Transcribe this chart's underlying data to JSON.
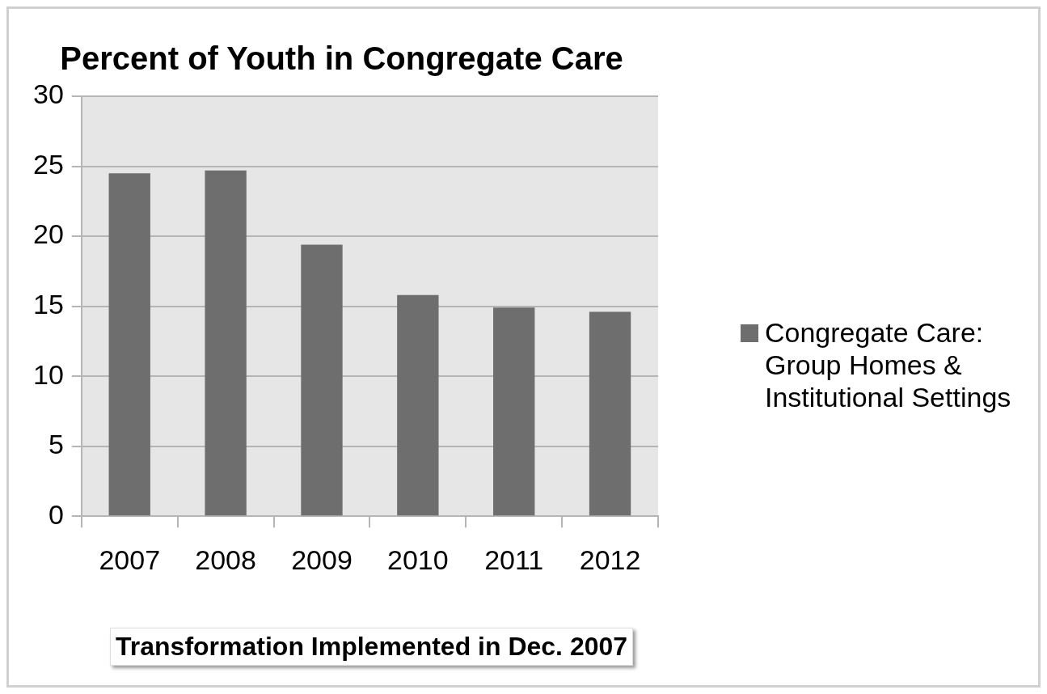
{
  "chart_data": {
    "type": "bar",
    "title": "Percent of Youth in Congregate Care",
    "xlabel": "Transformation Implemented in Dec. 2007",
    "categories": [
      "2007",
      "2008",
      "2009",
      "2010",
      "2011",
      "2012"
    ],
    "series": [
      {
        "name": "Congregate Care: Group Homes & Institutional Settings",
        "color": "#6e6e6e",
        "values": [
          24.5,
          24.7,
          19.4,
          15.8,
          14.9,
          14.6
        ]
      }
    ],
    "ylim": [
      0,
      30
    ],
    "yticks": [
      0,
      5,
      10,
      15,
      20,
      25,
      30
    ],
    "grid": "y",
    "legend": "right"
  }
}
